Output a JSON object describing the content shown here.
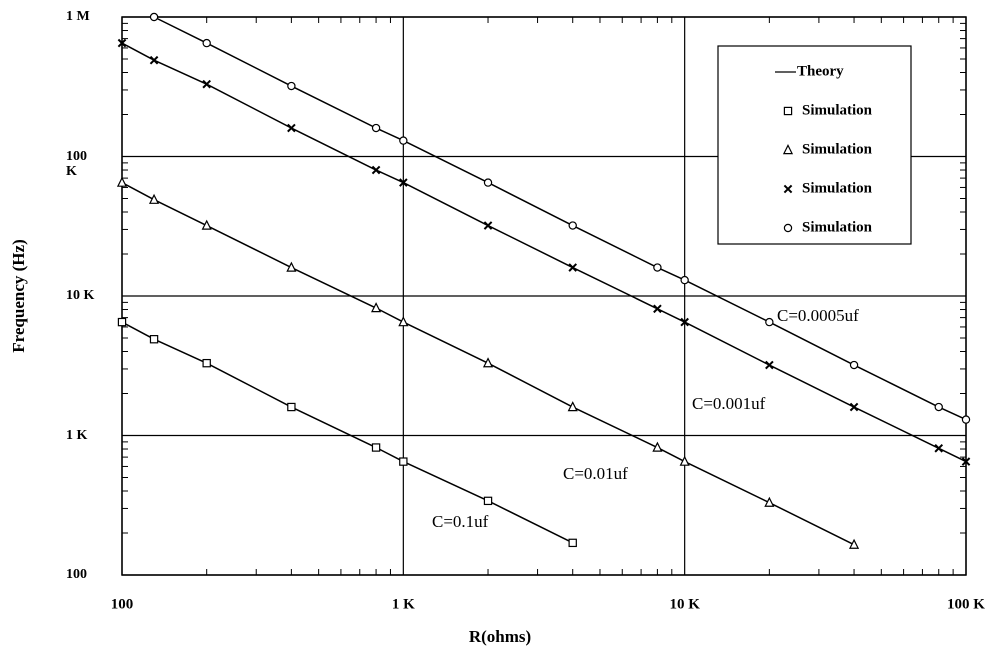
{
  "chart_data": {
    "type": "line",
    "log_x": true,
    "log_y": true,
    "grid": true,
    "legend": "upper right",
    "color": "#000000",
    "xlabel": "R(ohms)",
    "ylabel": "Frequency (Hz)",
    "theory_name": "Theory",
    "xlim": [
      100,
      100000
    ],
    "xticks": [
      100,
      {
        "value": 1000,
        "label": "1 K"
      },
      {
        "value": 10000,
        "label": "10 K"
      },
      {
        "value": 100000,
        "label": "100 K"
      }
    ],
    "ylim": [
      100,
      1000000
    ],
    "yticks": [
      100,
      {
        "value": 1000,
        "label": "1 K"
      },
      {
        "value": 10000,
        "label": "10 K"
      },
      {
        "value": 100000,
        "label": "100 K"
      },
      {
        "value": 1000000,
        "label": "1 M"
      }
    ],
    "series": [
      {
        "name": "Simulation",
        "marker": "square",
        "annotation": "C=0.1uf",
        "x": [
          100,
          130,
          200,
          400,
          800,
          1000,
          2000,
          4000
        ],
        "values": [
          6500,
          4900,
          3300,
          1600,
          820,
          650,
          340,
          170
        ]
      },
      {
        "name": "Simulation",
        "marker": "triangle",
        "annotation": "C=0.01uf",
        "x": [
          100,
          130,
          200,
          400,
          800,
          1000,
          2000,
          4000,
          8000,
          10000,
          20000,
          40000
        ],
        "values": [
          65000,
          49000,
          32000,
          16000,
          8200,
          6500,
          3300,
          1600,
          820,
          650,
          330,
          165
        ]
      },
      {
        "name": "Simulation",
        "marker": "cross",
        "annotation": "C=0.001uf",
        "x": [
          100,
          130,
          200,
          400,
          800,
          1000,
          2000,
          4000,
          8000,
          10000,
          20000,
          40000,
          80000,
          100000
        ],
        "values": [
          650000,
          490000,
          330000,
          160000,
          80000,
          65000,
          32000,
          16000,
          8100,
          6500,
          3200,
          1600,
          810,
          650
        ]
      },
      {
        "name": "Simulation",
        "marker": "circle",
        "annotation": "C=0.0005uf",
        "x": [
          130,
          200,
          400,
          800,
          1000,
          2000,
          4000,
          8000,
          10000,
          20000,
          40000,
          80000,
          100000
        ],
        "values": [
          1000000,
          650000,
          320000,
          160000,
          130000,
          65000,
          32000,
          16000,
          13000,
          6500,
          3200,
          1600,
          1300
        ]
      }
    ]
  }
}
